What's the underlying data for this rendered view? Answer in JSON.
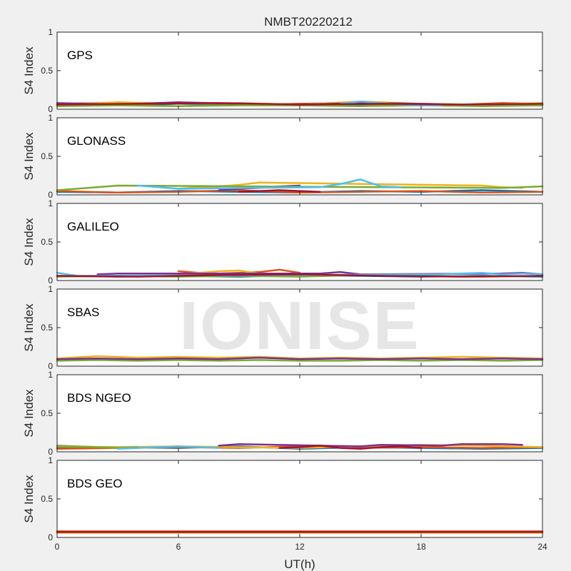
{
  "chart_data": {
    "type": "line",
    "title": "NMBT20220212",
    "xlabel": "UT(h)",
    "xlim": [
      0,
      24
    ],
    "xticks": [
      0,
      6,
      12,
      18,
      24
    ],
    "watermark": "IONISE",
    "series_colors": [
      "#0072BD",
      "#D95319",
      "#EDB120",
      "#7E2F8E",
      "#77AC30",
      "#4DBEEE",
      "#A2142F"
    ],
    "panels": [
      {
        "label": "GPS",
        "ylabel": "S4 Index",
        "ylim": [
          0,
          1
        ],
        "yticks": [
          "0",
          "0.5",
          "1"
        ],
        "series": [
          {
            "color": "#0072BD",
            "x": [
              0,
              2,
              4,
              6,
              8,
              10,
              12,
              14,
              16,
              18,
              20,
              22,
              24
            ],
            "y": [
              0.05,
              0.06,
              0.05,
              0.07,
              0.05,
              0.06,
              0.05,
              0.06,
              0.05,
              0.06,
              0.05,
              0.06,
              0.05
            ]
          },
          {
            "color": "#D95319",
            "x": [
              0,
              2,
              4,
              6,
              8,
              10,
              12,
              14,
              16,
              18,
              20,
              22,
              24
            ],
            "y": [
              0.07,
              0.08,
              0.06,
              0.08,
              0.07,
              0.06,
              0.07,
              0.08,
              0.06,
              0.07,
              0.06,
              0.08,
              0.07
            ]
          },
          {
            "color": "#EDB120",
            "x": [
              0,
              3,
              6,
              9,
              12,
              15,
              18,
              21,
              24
            ],
            "y": [
              0.06,
              0.09,
              0.07,
              0.08,
              0.06,
              0.1,
              0.07,
              0.06,
              0.08
            ]
          },
          {
            "color": "#7E2F8E",
            "x": [
              0,
              3,
              6,
              9,
              12,
              15,
              18,
              21,
              24
            ],
            "y": [
              0.08,
              0.06,
              0.09,
              0.07,
              0.06,
              0.08,
              0.07,
              0.05,
              0.06
            ]
          },
          {
            "color": "#77AC30",
            "x": [
              0,
              3,
              6,
              9,
              12,
              15,
              18,
              21,
              24
            ],
            "y": [
              0.04,
              0.05,
              0.04,
              0.05,
              0.05,
              0.04,
              0.05,
              0.04,
              0.05
            ]
          },
          {
            "color": "#4DBEEE",
            "x": [
              14,
              15,
              16,
              17,
              18,
              19
            ],
            "y": [
              0.07,
              0.1,
              0.08,
              0.06,
              0.05,
              0.05
            ]
          },
          {
            "color": "#A2142F",
            "x": [
              0,
              4,
              8,
              12,
              16,
              20,
              24
            ],
            "y": [
              0.06,
              0.07,
              0.08,
              0.06,
              0.07,
              0.06,
              0.07
            ]
          }
        ]
      },
      {
        "label": "GLONASS",
        "ylabel": "S4 Index",
        "ylim": [
          0,
          1
        ],
        "yticks": [
          "0",
          "0.5",
          "1"
        ],
        "series": [
          {
            "color": "#0072BD",
            "x": [
              0,
              3,
              6,
              9,
              12,
              15,
              18,
              21,
              24
            ],
            "y": [
              0.04,
              0.03,
              0.05,
              0.04,
              0.03,
              0.05,
              0.04,
              0.06,
              0.04
            ]
          },
          {
            "color": "#D95319",
            "x": [
              0,
              3,
              6,
              9,
              12,
              15,
              18,
              21,
              24
            ],
            "y": [
              0.05,
              0.03,
              0.04,
              0.06,
              0.03,
              0.04,
              0.05,
              0.03,
              0.04
            ]
          },
          {
            "color": "#EDB120",
            "x": [
              6,
              7,
              8,
              9,
              10,
              21,
              22,
              23
            ],
            "y": [
              0.08,
              0.1,
              0.11,
              0.13,
              0.16,
              0.12,
              0.1,
              0.09
            ]
          },
          {
            "color": "#7E2F8E",
            "x": [
              8,
              9,
              10,
              11,
              12
            ],
            "y": [
              0.06,
              0.08,
              0.09,
              0.11,
              0.12
            ]
          },
          {
            "color": "#77AC30",
            "x": [
              0,
              1,
              2,
              3,
              22,
              23,
              24
            ],
            "y": [
              0.06,
              0.08,
              0.1,
              0.12,
              0.09,
              0.1,
              0.11
            ]
          },
          {
            "color": "#4DBEEE",
            "x": [
              4,
              5,
              6,
              13,
              14,
              15,
              16,
              17
            ],
            "y": [
              0.12,
              0.1,
              0.08,
              0.1,
              0.14,
              0.2,
              0.11,
              0.1
            ]
          },
          {
            "color": "#A2142F",
            "x": [
              9,
              10,
              11,
              12,
              13
            ],
            "y": [
              0.04,
              0.05,
              0.06,
              0.05,
              0.04
            ]
          }
        ]
      },
      {
        "label": "GALILEO",
        "ylabel": "S4 Index",
        "ylim": [
          0,
          1
        ],
        "yticks": [
          "0",
          "0.5",
          "1"
        ],
        "series": [
          {
            "color": "#0072BD",
            "x": [
              0,
              3,
              6,
              9,
              12,
              15,
              18,
              21,
              24
            ],
            "y": [
              0.06,
              0.05,
              0.06,
              0.05,
              0.07,
              0.06,
              0.05,
              0.06,
              0.05
            ]
          },
          {
            "color": "#D95319",
            "x": [
              6,
              7,
              8,
              9,
              10,
              11,
              12
            ],
            "y": [
              0.12,
              0.1,
              0.09,
              0.1,
              0.11,
              0.14,
              0.1
            ]
          },
          {
            "color": "#EDB120",
            "x": [
              6,
              7,
              8,
              9,
              10
            ],
            "y": [
              0.08,
              0.1,
              0.12,
              0.13,
              0.09
            ]
          },
          {
            "color": "#7E2F8E",
            "x": [
              2,
              3,
              13,
              14,
              15,
              22,
              23,
              24
            ],
            "y": [
              0.08,
              0.09,
              0.09,
              0.11,
              0.08,
              0.09,
              0.1,
              0.08
            ]
          },
          {
            "color": "#77AC30",
            "x": [
              0,
              3,
              6,
              9,
              12,
              15,
              18,
              21,
              24
            ],
            "y": [
              0.05,
              0.06,
              0.05,
              0.06,
              0.05,
              0.07,
              0.06,
              0.05,
              0.06
            ]
          },
          {
            "color": "#4DBEEE",
            "x": [
              0,
              1,
              19,
              20,
              21,
              22,
              23,
              24
            ],
            "y": [
              0.1,
              0.06,
              0.08,
              0.09,
              0.1,
              0.08,
              0.09,
              0.08
            ]
          },
          {
            "color": "#A2142F",
            "x": [
              0,
              4,
              8,
              12,
              16,
              20,
              24
            ],
            "y": [
              0.06,
              0.05,
              0.07,
              0.08,
              0.06,
              0.05,
              0.06
            ]
          }
        ]
      },
      {
        "label": "SBAS",
        "ylabel": "S4 Index",
        "ylim": [
          0,
          1
        ],
        "yticks": [
          "0",
          "0.5",
          "1"
        ],
        "series": [
          {
            "color": "#77AC30",
            "x": [
              0,
              2,
              4,
              6,
              8,
              10,
              12,
              14,
              16,
              18,
              20,
              22,
              24
            ],
            "y": [
              0.07,
              0.08,
              0.07,
              0.08,
              0.07,
              0.08,
              0.07,
              0.07,
              0.08,
              0.07,
              0.08,
              0.07,
              0.08
            ]
          },
          {
            "color": "#EDB120",
            "x": [
              0,
              2,
              4,
              6,
              8,
              10,
              12,
              14,
              16,
              18,
              20,
              22,
              24
            ],
            "y": [
              0.1,
              0.13,
              0.11,
              0.12,
              0.11,
              0.12,
              0.1,
              0.11,
              0.1,
              0.11,
              0.12,
              0.11,
              0.1
            ]
          },
          {
            "color": "#7E2F8E",
            "x": [
              0,
              2,
              4,
              6,
              8,
              10,
              12,
              14,
              16,
              18,
              20,
              22,
              24
            ],
            "y": [
              0.09,
              0.1,
              0.09,
              0.1,
              0.09,
              0.11,
              0.09,
              0.1,
              0.09,
              0.1,
              0.09,
              0.1,
              0.09
            ]
          }
        ]
      },
      {
        "label": "BDS NGEO",
        "ylabel": "S4 Index",
        "ylim": [
          0,
          1
        ],
        "yticks": [
          "0",
          "0.5",
          "1"
        ],
        "series": [
          {
            "color": "#0072BD",
            "x": [
              0,
              3,
              6,
              9,
              12,
              15,
              18,
              21,
              24
            ],
            "y": [
              0.05,
              0.06,
              0.05,
              0.07,
              0.04,
              0.06,
              0.05,
              0.04,
              0.05
            ]
          },
          {
            "color": "#D95319",
            "x": [
              0,
              3,
              6,
              9,
              12,
              15,
              18,
              21,
              24
            ],
            "y": [
              0.04,
              0.05,
              0.06,
              0.05,
              0.07,
              0.05,
              0.06,
              0.05,
              0.06
            ]
          },
          {
            "color": "#EDB120",
            "x": [
              0,
              3,
              6,
              9,
              12,
              15,
              18,
              21,
              24
            ],
            "y": [
              0.07,
              0.06,
              0.07,
              0.06,
              0.05,
              0.07,
              0.09,
              0.08,
              0.06
            ]
          },
          {
            "color": "#7E2F8E",
            "x": [
              8,
              9,
              15,
              16,
              19,
              20,
              22,
              23
            ],
            "y": [
              0.08,
              0.1,
              0.07,
              0.09,
              0.08,
              0.1,
              0.1,
              0.09
            ]
          },
          {
            "color": "#77AC30",
            "x": [
              0,
              1,
              2,
              3,
              4
            ],
            "y": [
              0.08,
              0.07,
              0.06,
              0.05,
              0.06
            ]
          },
          {
            "color": "#4DBEEE",
            "x": [
              3,
              4,
              5,
              6,
              7,
              8
            ],
            "y": [
              0.04,
              0.05,
              0.06,
              0.07,
              0.06,
              0.05
            ]
          },
          {
            "color": "#A2142F",
            "x": [
              11,
              12,
              13,
              14,
              15,
              16,
              17,
              18
            ],
            "y": [
              0.05,
              0.06,
              0.08,
              0.05,
              0.04,
              0.06,
              0.07,
              0.05
            ]
          }
        ]
      },
      {
        "label": "BDS GEO",
        "ylabel": "S4 Index",
        "ylim": [
          0,
          1
        ],
        "yticks": [
          "0",
          "0.5",
          "1"
        ],
        "series": [
          {
            "color": "#EDB120",
            "x": [
              0,
              4,
              8,
              12,
              16,
              20,
              24
            ],
            "y": [
              0.06,
              0.06,
              0.06,
              0.06,
              0.06,
              0.06,
              0.06
            ]
          },
          {
            "color": "#D95319",
            "x": [
              0,
              4,
              8,
              12,
              16,
              20,
              24
            ],
            "y": [
              0.08,
              0.08,
              0.08,
              0.08,
              0.08,
              0.08,
              0.08
            ]
          },
          {
            "color": "#A2142F",
            "x": [
              0,
              4,
              8,
              12,
              16,
              20,
              24
            ],
            "y": [
              0.07,
              0.07,
              0.07,
              0.07,
              0.07,
              0.07,
              0.07
            ]
          }
        ]
      }
    ]
  }
}
